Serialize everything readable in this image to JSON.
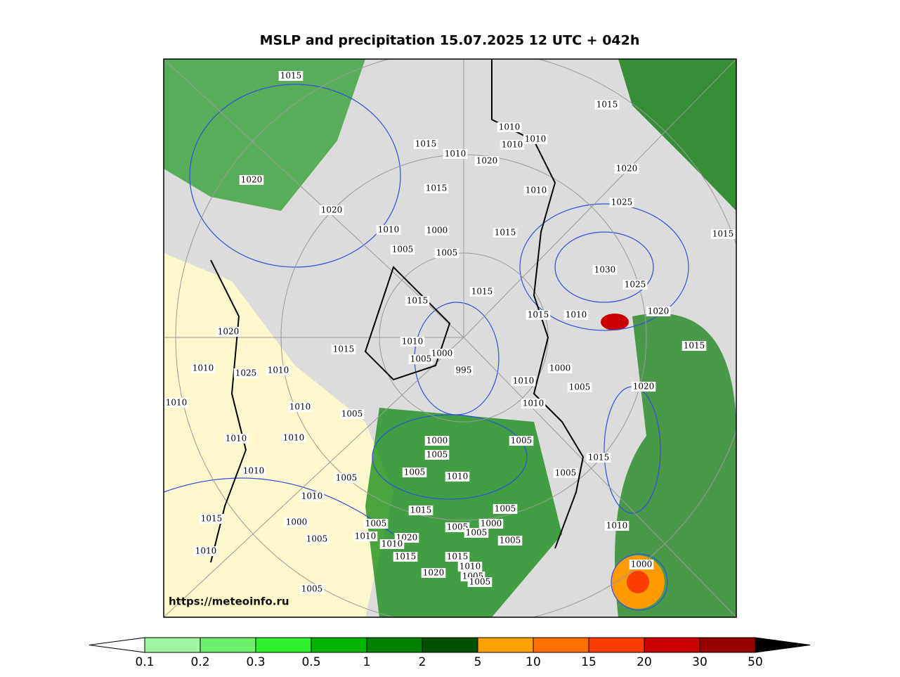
{
  "title": "MSLP and precipitation 15.07.2025 12 UTC + 042h",
  "watermark": "https://meteoinfo.ru",
  "isobar_labels": [
    1015,
    1015,
    1010,
    1010,
    1015,
    1010,
    1010,
    1020,
    1020,
    1015,
    1010,
    1020,
    1025,
    1020,
    1010,
    1000,
    1015,
    1015,
    1005,
    1005,
    1030,
    1025,
    1015,
    1015,
    1020,
    1015,
    1010,
    1020,
    1010,
    1015,
    1015,
    1000,
    1005,
    995,
    1010,
    1025,
    1010,
    1000,
    1005,
    1020,
    1010,
    1010,
    1010,
    1010,
    1005,
    1010,
    1010,
    1000,
    1005,
    1005,
    1015,
    1010,
    1005,
    1010,
    1005,
    1005,
    1010,
    1015,
    1005,
    1015,
    1010,
    1000,
    1005,
    1000,
    1005,
    1005,
    1005,
    1010,
    1020,
    1010,
    1005,
    1010,
    1000,
    1015,
    1015,
    1010,
    1020,
    1005,
    1005,
    1005
  ],
  "legend": {
    "bounds": [
      0.1,
      0.2,
      0.3,
      0.5,
      1,
      2,
      5,
      10,
      15,
      20,
      30,
      50
    ],
    "colors": [
      "#a0f5a0",
      "#6ef06e",
      "#2ef02e",
      "#00b400",
      "#008200",
      "#005000",
      "#ffa000",
      "#ff7000",
      "#ff3c00",
      "#c80000",
      "#960000"
    ],
    "under_color": "#ffffff",
    "over_color": "#000000"
  }
}
